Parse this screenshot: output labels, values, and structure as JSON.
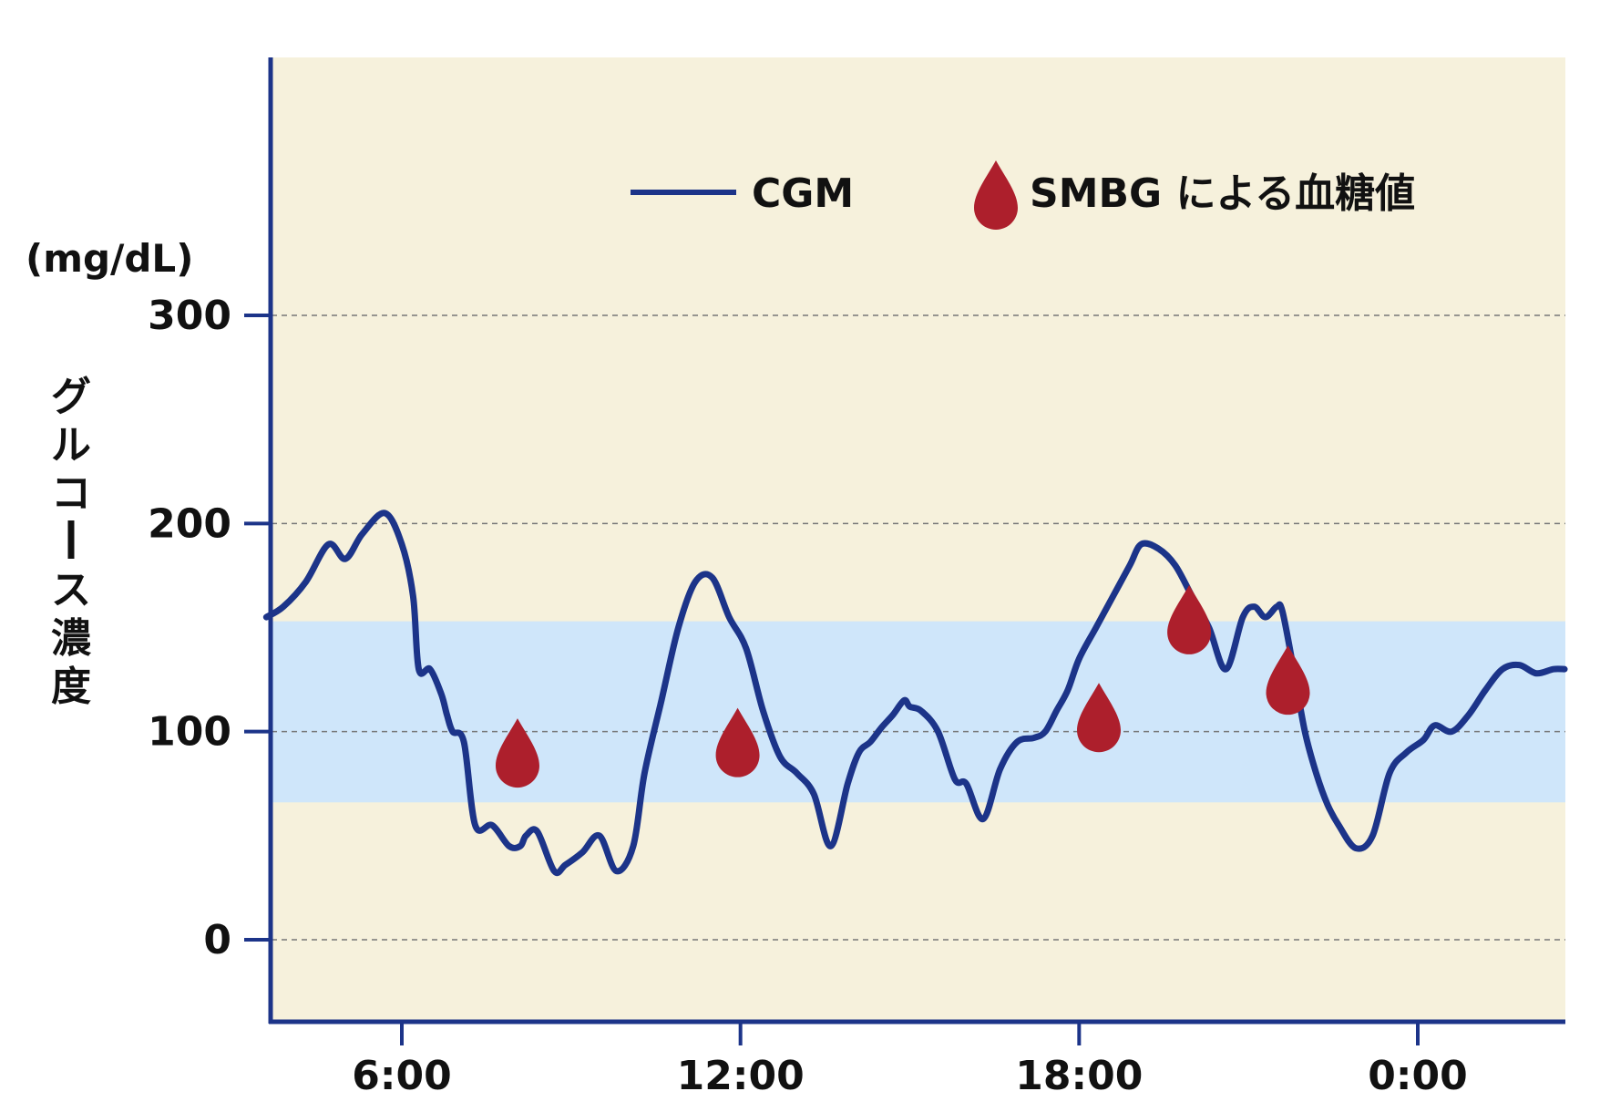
{
  "chart_data": {
    "type": "line",
    "unit_label": "(mg/dL)",
    "ylabel": "グルコース濃度",
    "xlabel": "",
    "ylim": [
      -40,
      320
    ],
    "xlim": [
      3.6,
      26.6
    ],
    "grid": true,
    "legend_position": "top-right",
    "y_ticks": [
      0,
      100,
      200,
      300
    ],
    "y_tick_labels": [
      "0",
      "100",
      "200",
      "300"
    ],
    "x_ticks": [
      6,
      12,
      18,
      24
    ],
    "x_tick_labels": [
      "6:00",
      "12:00",
      "18:00",
      "0:00"
    ],
    "target_range": [
      66,
      153
    ],
    "colors": {
      "background": "#f6f1dc",
      "target_band": "#cfe6fa",
      "cgm_line": "#1c3489",
      "smbg_marker": "#ad1f2c",
      "axis": "#1c3489",
      "grid": "#777777"
    },
    "series": [
      {
        "name": "CGM",
        "kind": "line",
        "x": [
          3.6,
          3.9,
          4.3,
          4.7,
          5.0,
          5.3,
          5.7,
          6.0,
          6.2,
          6.3,
          6.5,
          6.7,
          6.8,
          6.9,
          7.1,
          7.3,
          7.6,
          7.9,
          8.1,
          8.2,
          8.4,
          8.7,
          8.9,
          9.2,
          9.5,
          9.8,
          10.1,
          10.3,
          10.6,
          10.9,
          11.2,
          11.5,
          11.8,
          12.1,
          12.4,
          12.7,
          13.0,
          13.3,
          13.6,
          13.9,
          14.1,
          14.3,
          14.5,
          14.7,
          14.9,
          15.0,
          15.2,
          15.5,
          15.8,
          16.0,
          16.3,
          16.6,
          16.9,
          17.2,
          17.4,
          17.6,
          17.8,
          18.0,
          18.3,
          18.6,
          18.9,
          19.1,
          19.4,
          19.7,
          20.0,
          20.3,
          20.6,
          20.9,
          21.1,
          21.3,
          21.5,
          21.6,
          21.8,
          22.0,
          22.2,
          22.4,
          22.6,
          22.9,
          23.2,
          23.5,
          23.8,
          24.1,
          24.3,
          24.6,
          24.9,
          25.2,
          25.5,
          25.8,
          26.1,
          26.4,
          26.6
        ],
        "y": [
          155,
          160,
          172,
          190,
          183,
          195,
          205,
          190,
          165,
          130,
          130,
          118,
          108,
          100,
          95,
          55,
          55,
          45,
          45,
          50,
          52,
          33,
          36,
          42,
          50,
          33,
          45,
          80,
          115,
          150,
          172,
          174,
          155,
          140,
          110,
          88,
          80,
          70,
          45,
          75,
          90,
          95,
          102,
          108,
          115,
          112,
          110,
          100,
          77,
          75,
          58,
          82,
          95,
          97,
          100,
          110,
          120,
          135,
          150,
          165,
          180,
          190,
          188,
          180,
          165,
          150,
          130,
          155,
          160,
          155,
          160,
          158,
          130,
          100,
          80,
          65,
          55,
          44,
          50,
          80,
          90,
          96,
          103,
          100,
          108,
          120,
          130,
          132,
          128,
          130,
          130
        ]
      },
      {
        "name": "SMBG による血糖値",
        "kind": "point",
        "x": [
          8.05,
          11.95,
          19.95,
          21.7,
          18.35
        ],
        "y": [
          88,
          93,
          152,
          123,
          105
        ]
      }
    ]
  }
}
